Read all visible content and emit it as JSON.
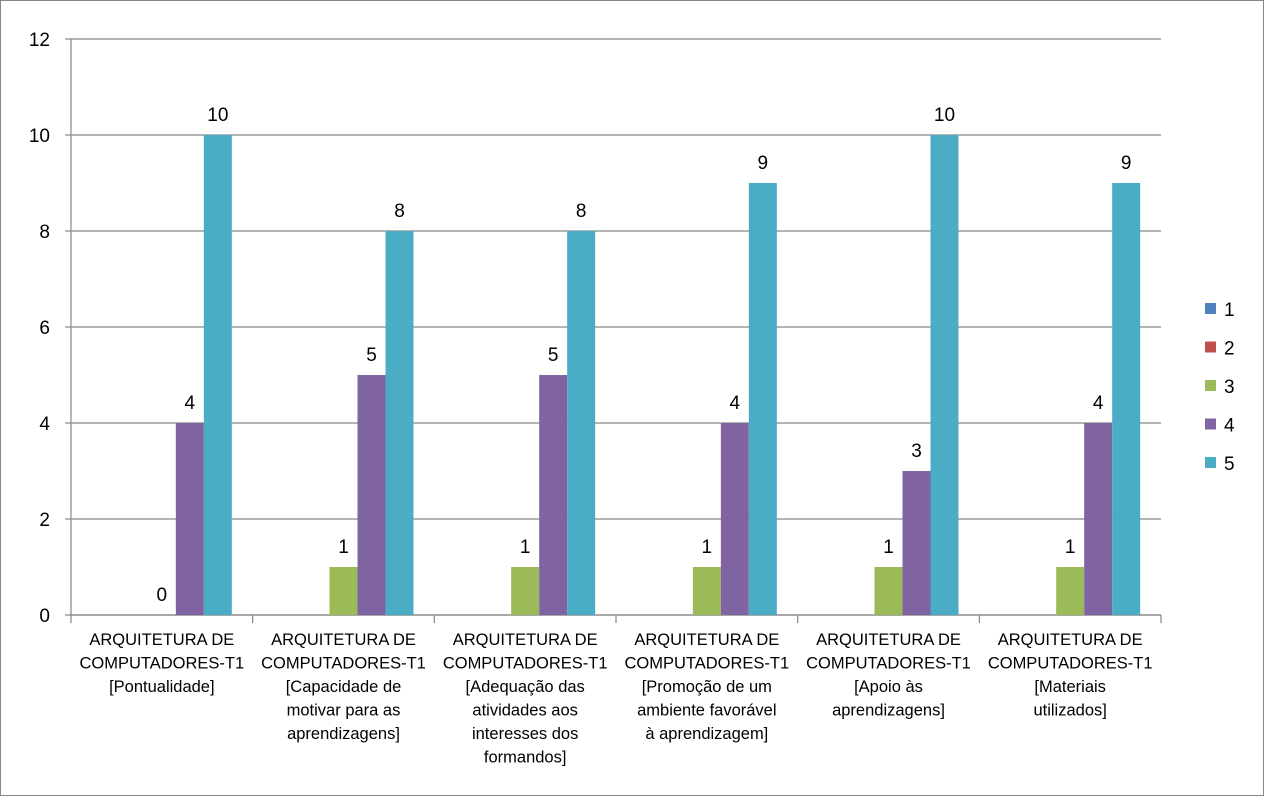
{
  "chart_data": {
    "type": "bar",
    "title": "",
    "xlabel": "",
    "ylabel": "",
    "ylim": [
      0,
      12
    ],
    "yticks": [
      "0",
      "2",
      "4",
      "6",
      "8",
      "10",
      "12"
    ],
    "grid": true,
    "legend_position": "right",
    "categories": [
      [
        "ARQUITETURA DE",
        "COMPUTADORES-T1",
        "[Pontualidade]"
      ],
      [
        "ARQUITETURA DE",
        "COMPUTADORES-T1",
        "[Capacidade de",
        "motivar para as",
        "aprendizagens]"
      ],
      [
        "ARQUITETURA DE",
        "COMPUTADORES-T1",
        "[Adequação das",
        "atividades aos",
        "interesses dos",
        "formandos]"
      ],
      [
        "ARQUITETURA DE",
        "COMPUTADORES-T1",
        "[Promoção de um",
        "ambiente favorável",
        "à aprendizagem]"
      ],
      [
        "ARQUITETURA DE",
        "COMPUTADORES-T1",
        "[Apoio às",
        "aprendizagens]"
      ],
      [
        "ARQUITETURA DE",
        "COMPUTADORES-T1",
        "[Materiais",
        "utilizados]"
      ]
    ],
    "series": [
      {
        "name": "1",
        "color": "#4F81BD",
        "values": [
          null,
          null,
          null,
          null,
          null,
          null
        ],
        "labels": [
          null,
          null,
          null,
          null,
          null,
          null
        ]
      },
      {
        "name": "2",
        "color": "#C0504D",
        "values": [
          null,
          null,
          null,
          null,
          null,
          null
        ],
        "labels": [
          null,
          null,
          null,
          null,
          null,
          null
        ]
      },
      {
        "name": "3",
        "color": "#9BBB59",
        "values": [
          0,
          1,
          1,
          1,
          1,
          1
        ],
        "labels": [
          "0",
          "1",
          "1",
          "1",
          "1",
          "1"
        ]
      },
      {
        "name": "4",
        "color": "#8064A2",
        "values": [
          4,
          5,
          5,
          4,
          3,
          4
        ],
        "labels": [
          "4",
          "5",
          "5",
          "4",
          "3",
          "4"
        ]
      },
      {
        "name": "5",
        "color": "#4BACC6",
        "values": [
          10,
          8,
          8,
          9,
          10,
          9
        ],
        "labels": [
          "10",
          "8",
          "8",
          "9",
          "10",
          "9"
        ]
      }
    ]
  }
}
